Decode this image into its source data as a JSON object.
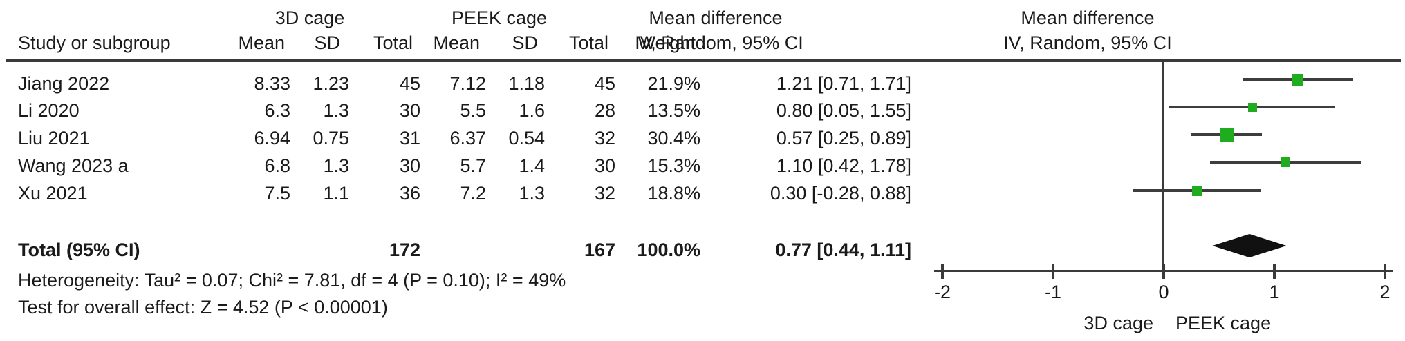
{
  "colors": {
    "square_green": "#1fad1f",
    "line_gray": "#3d3d3d",
    "diamond_black": "#111111",
    "text_black": "#1a1a1a"
  },
  "header": {
    "study_col": "Study or subgroup",
    "group1": "3D cage",
    "group2": "PEEK cage",
    "mean": "Mean",
    "sd": "SD",
    "total": "Total",
    "weight": "Weight",
    "md_title": "Mean difference",
    "md_sub": "IV, Random, 95% CI",
    "plot_title": "Mean difference",
    "plot_sub": "IV, Random, 95% CI"
  },
  "rows": [
    {
      "study": "Jiang 2022",
      "m1": "8.33",
      "sd1": "1.23",
      "n1": "45",
      "m2": "7.12",
      "sd2": "1.18",
      "n2": "45",
      "weight": "21.9%",
      "md": "1.21 [0.71, 1.71]"
    },
    {
      "study": "Li 2020",
      "m1": "6.3",
      "sd1": "1.3",
      "n1": "30",
      "m2": "5.5",
      "sd2": "1.6",
      "n2": "28",
      "weight": "13.5%",
      "md": "0.80 [0.05, 1.55]"
    },
    {
      "study": "Liu 2021",
      "m1": "6.94",
      "sd1": "0.75",
      "n1": "31",
      "m2": "6.37",
      "sd2": "0.54",
      "n2": "32",
      "weight": "30.4%",
      "md": "0.57 [0.25, 0.89]"
    },
    {
      "study": "Wang 2023 a",
      "m1": "6.8",
      "sd1": "1.3",
      "n1": "30",
      "m2": "5.7",
      "sd2": "1.4",
      "n2": "30",
      "weight": "15.3%",
      "md": "1.10 [0.42, 1.78]"
    },
    {
      "study": "Xu 2021",
      "m1": "7.5",
      "sd1": "1.1",
      "n1": "36",
      "m2": "7.2",
      "sd2": "1.3",
      "n2": "32",
      "weight": "18.8%",
      "md": "0.30 [-0.28, 0.88]"
    }
  ],
  "total": {
    "label": "Total (95% CI)",
    "n1": "172",
    "n2": "167",
    "weight": "100.0%",
    "md": "0.77 [0.44, 1.11]"
  },
  "footnotes": {
    "heterogeneity": "Heterogeneity: Tau² = 0.07; Chi² = 7.81, df = 4 (P = 0.10); I² = 49%",
    "overall_effect": "Test for overall effect: Z = 4.52 (P < 0.00001)"
  },
  "chart_data": {
    "type": "forest",
    "effect_measure": "Mean difference, IV, Random, 95% CI",
    "studies": [
      {
        "name": "Jiang 2022",
        "md": 1.21,
        "ci_low": 0.71,
        "ci_high": 1.71,
        "weight_pct": 21.9
      },
      {
        "name": "Li 2020",
        "md": 0.8,
        "ci_low": 0.05,
        "ci_high": 1.55,
        "weight_pct": 13.5
      },
      {
        "name": "Liu 2021",
        "md": 0.57,
        "ci_low": 0.25,
        "ci_high": 0.89,
        "weight_pct": 30.4
      },
      {
        "name": "Wang 2023 a",
        "md": 1.1,
        "ci_low": 0.42,
        "ci_high": 1.78,
        "weight_pct": 15.3
      },
      {
        "name": "Xu 2021",
        "md": 0.3,
        "ci_low": -0.28,
        "ci_high": 0.88,
        "weight_pct": 18.8
      }
    ],
    "total": {
      "md": 0.77,
      "ci_low": 0.44,
      "ci_high": 1.11
    },
    "axis": {
      "min": -2,
      "max": 2,
      "ticks": [
        -2,
        -1,
        0,
        1,
        2
      ],
      "left_label": "3D cage",
      "right_label": "PEEK cage"
    }
  }
}
